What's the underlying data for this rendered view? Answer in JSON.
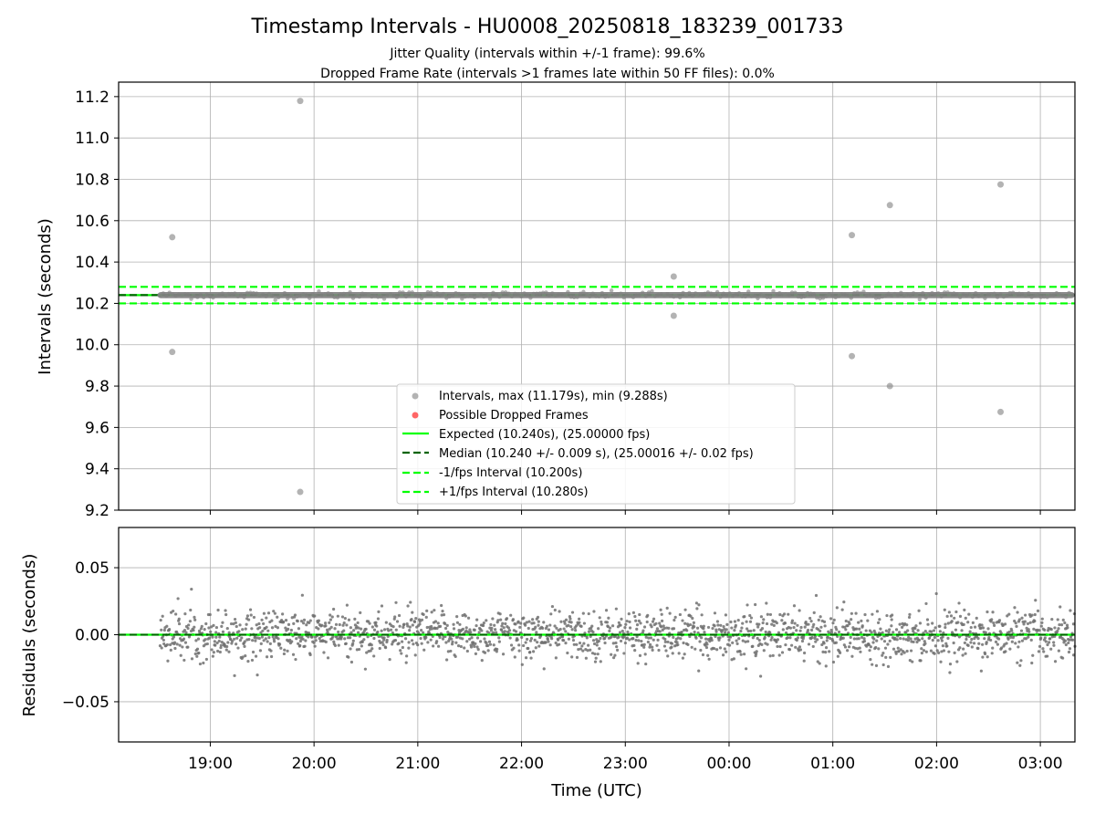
{
  "figure": {
    "title": "Timestamp Intervals - HU0008_20250818_183239_001733",
    "subtitle_1": "Jitter Quality (intervals within +/-1 frame): 99.6%",
    "subtitle_2": "Dropped Frame Rate (intervals >1 frames late within 50 FF files): 0.0%"
  },
  "chart_data": [
    {
      "type": "scatter",
      "ylabel": "Intervals (seconds)",
      "ylim": [
        9.2,
        11.27
      ],
      "xlim": [
        "18:07",
        "03:20"
      ],
      "x_ticks": [
        "19:00",
        "20:00",
        "21:00",
        "22:00",
        "23:00",
        "00:00",
        "01:00",
        "02:00",
        "03:00"
      ],
      "y_ticks": [
        "9.2",
        "9.4",
        "9.6",
        "9.8",
        "10.0",
        "10.2",
        "10.4",
        "10.6",
        "10.8",
        "11.0",
        "11.2"
      ],
      "grid": true,
      "intervals_time_range": [
        "18:31",
        "03:20"
      ],
      "outliers": [
        {
          "time": "18:38",
          "value": 10.52
        },
        {
          "time": "18:38",
          "value": 9.965
        },
        {
          "time": "19:52",
          "value": 11.179
        },
        {
          "time": "19:52",
          "value": 9.288
        },
        {
          "time": "23:28",
          "value": 10.33
        },
        {
          "time": "23:28",
          "value": 10.14
        },
        {
          "time": "01:11",
          "value": 10.53
        },
        {
          "time": "01:11",
          "value": 9.945
        },
        {
          "time": "01:33",
          "value": 10.675
        },
        {
          "time": "01:33",
          "value": 9.8
        },
        {
          "time": "02:37",
          "value": 10.775
        },
        {
          "time": "02:37",
          "value": 9.675
        }
      ],
      "expected": 10.24,
      "median": 10.24,
      "minus_interval": 10.2,
      "plus_interval": 10.28,
      "legend": {
        "location": "lower center",
        "entries": [
          {
            "label": "Intervals, max (11.179s), min (9.288s)",
            "marker": "circle",
            "color": "#808080"
          },
          {
            "label": "Possible Dropped Frames",
            "marker": "circle",
            "color": "#ff0000"
          },
          {
            "label": "Expected (10.240s), (25.00000 fps)",
            "marker": "line",
            "color": "#00ff00"
          },
          {
            "label": "Median (10.240 +/- 0.009 s), (25.00016 +/- 0.02 fps)",
            "marker": "dashed",
            "color": "#006400"
          },
          {
            "label": "-1/fps Interval (10.200s)",
            "marker": "dashed",
            "color": "#00ff00"
          },
          {
            "label": "+1/fps Interval (10.280s)",
            "marker": "dashed",
            "color": "#00ff00"
          }
        ]
      }
    },
    {
      "type": "scatter",
      "xlabel": "Time (UTC)",
      "ylabel": "Residuals (seconds)",
      "ylim": [
        -0.08,
        0.08
      ],
      "xlim": [
        "18:07",
        "03:20"
      ],
      "x_ticks": [
        "19:00",
        "20:00",
        "21:00",
        "22:00",
        "23:00",
        "00:00",
        "01:00",
        "02:00",
        "03:00"
      ],
      "y_ticks": [
        "−0.05",
        "0.00",
        "0.05"
      ],
      "y_tick_values": [
        -0.05,
        0.0,
        0.05
      ],
      "grid": true,
      "residual_spread_std": 0.009,
      "residual_range": [
        -0.031,
        0.034
      ],
      "zero_line": 0.0
    }
  ],
  "colors": {
    "points": "#808080",
    "expected": "#00ff00",
    "median": "#006400",
    "fps_interval": "#00ff00",
    "grid": "#b0b0b0"
  }
}
